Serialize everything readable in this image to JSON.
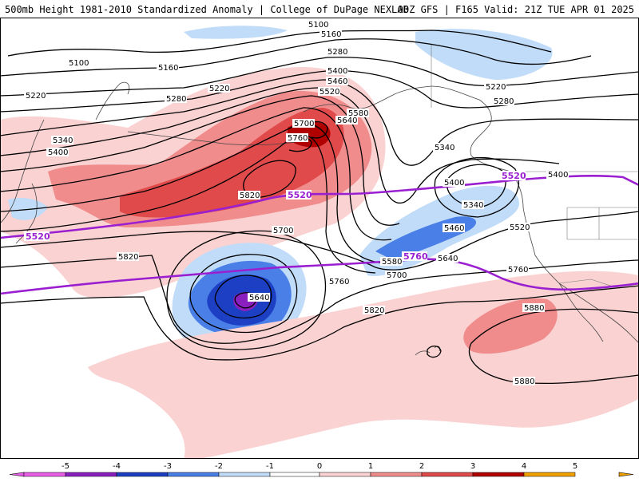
{
  "header": {
    "title_left": "500mb Height 1981-2010 Standardized Anomaly | College of DuPage NEXLAB",
    "title_right": "00Z GFS | F165 Valid: 21Z TUE APR 01 2025"
  },
  "colors": {
    "neg5": "#e85ee8",
    "neg4": "#8a1fc0",
    "neg3": "#1c3fc4",
    "neg2": "#4a7fe8",
    "neg1": "#c0dcf8",
    "zero": "#ffffff",
    "pos1": "#fad2d2",
    "pos2": "#f08c8c",
    "pos3": "#e04a4a",
    "pos4": "#b00000",
    "pos5": "#f0a000",
    "contour": "#000000",
    "highlight": "#9a1fd0"
  },
  "legend": {
    "ticks": [
      "-5",
      "-4",
      "-3",
      "-2",
      "-1",
      "0",
      "1",
      "2",
      "3",
      "4",
      "5"
    ]
  },
  "contours": {
    "labels": [
      {
        "text": "5100",
        "id": "c5100a"
      },
      {
        "text": "5100",
        "id": "c5100b"
      },
      {
        "text": "5160",
        "id": "c5160a"
      },
      {
        "text": "5160",
        "id": "c5160b"
      },
      {
        "text": "5220",
        "id": "c5220a"
      },
      {
        "text": "5220",
        "id": "c5220b"
      },
      {
        "text": "5220",
        "id": "c5220c"
      },
      {
        "text": "5280",
        "id": "c5280a"
      },
      {
        "text": "5280",
        "id": "c5280b"
      },
      {
        "text": "5280",
        "id": "c5280c"
      },
      {
        "text": "5340",
        "id": "c5340a"
      },
      {
        "text": "5340",
        "id": "c5340b"
      },
      {
        "text": "5340",
        "id": "c5340c"
      },
      {
        "text": "5400",
        "id": "c5400a"
      },
      {
        "text": "5400",
        "id": "c5400b"
      },
      {
        "text": "5400",
        "id": "c5400c"
      },
      {
        "text": "5460",
        "id": "c5460a"
      },
      {
        "text": "5460",
        "id": "c5460b"
      },
      {
        "text": "5520",
        "id": "c5520a"
      },
      {
        "text": "5520",
        "id": "c5520b"
      },
      {
        "text": "5580",
        "id": "c5580a"
      },
      {
        "text": "5580",
        "id": "c5580b"
      },
      {
        "text": "5640",
        "id": "c5640a"
      },
      {
        "text": "5640",
        "id": "c5640b"
      },
      {
        "text": "5640",
        "id": "c5640c"
      },
      {
        "text": "5700",
        "id": "c5700a"
      },
      {
        "text": "5700",
        "id": "c5700b"
      },
      {
        "text": "5700",
        "id": "c5700c"
      },
      {
        "text": "5760",
        "id": "c5760a"
      },
      {
        "text": "5760",
        "id": "c5760b"
      },
      {
        "text": "5760",
        "id": "c5760c"
      },
      {
        "text": "5820",
        "id": "c5820a"
      },
      {
        "text": "5820",
        "id": "c5820b"
      },
      {
        "text": "5820",
        "id": "c5820c"
      },
      {
        "text": "5880",
        "id": "c5880a"
      },
      {
        "text": "5880",
        "id": "c5880b"
      },
      {
        "text": "5400",
        "id": "c5400d"
      }
    ],
    "highlight_labels": [
      {
        "text": "5520",
        "id": "h5520a"
      },
      {
        "text": "5520",
        "id": "h5520b"
      },
      {
        "text": "5520",
        "id": "h5520c"
      },
      {
        "text": "5760",
        "id": "h5760a"
      }
    ]
  }
}
